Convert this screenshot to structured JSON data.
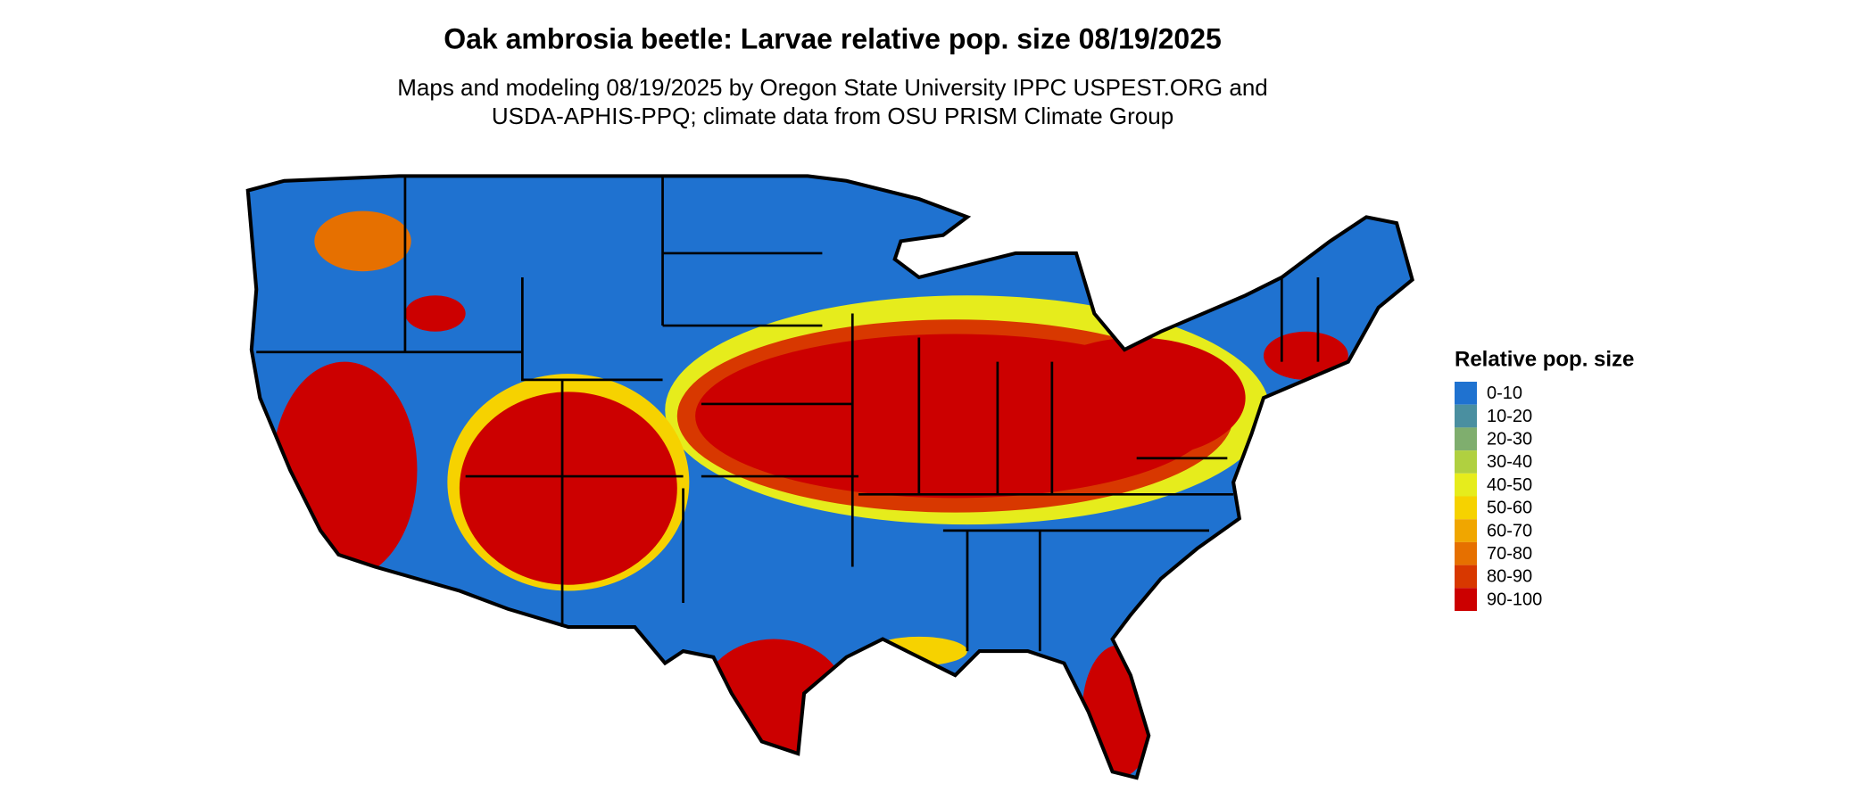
{
  "header": {
    "title": "Oak ambrosia beetle: Larvae relative pop. size 08/19/2025",
    "subtitle": [
      "Maps and modeling 08/19/2025 by Oregon State University IPPC USPEST.ORG and",
      "USDA-APHIS-PPQ; climate data from OSU PRISM Climate Group"
    ]
  },
  "legend": {
    "title": "Relative pop. size",
    "items": [
      {
        "label": "0-10",
        "color": "#1f72d0"
      },
      {
        "label": "10-20",
        "color": "#4a8fa0"
      },
      {
        "label": "20-30",
        "color": "#7fae6e"
      },
      {
        "label": "30-40",
        "color": "#b0d040"
      },
      {
        "label": "40-50",
        "color": "#e6ec1c"
      },
      {
        "label": "50-60",
        "color": "#f6d200"
      },
      {
        "label": "60-70",
        "color": "#f0a600"
      },
      {
        "label": "70-80",
        "color": "#e67000"
      },
      {
        "label": "80-90",
        "color": "#d83800"
      },
      {
        "label": "90-100",
        "color": "#cc0000"
      }
    ]
  }
}
